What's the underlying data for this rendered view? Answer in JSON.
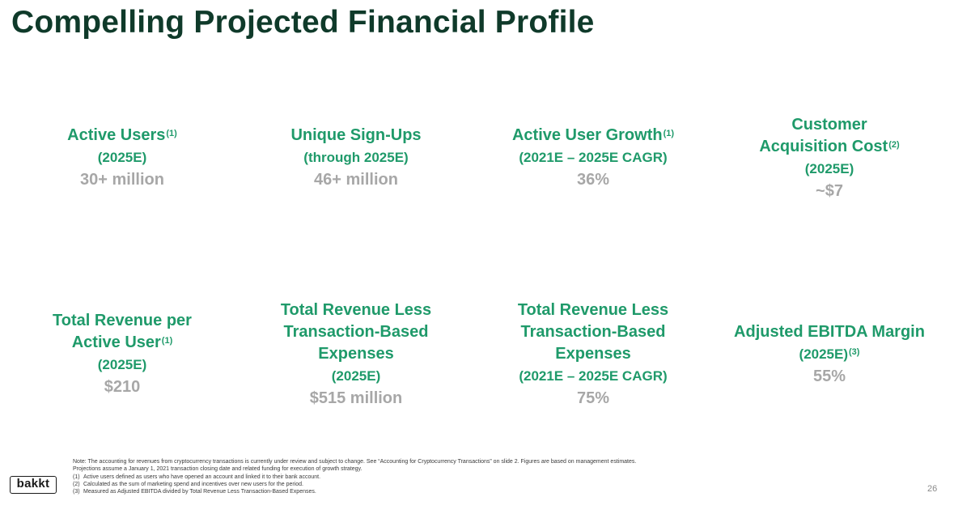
{
  "title": "Compelling Projected Financial Profile",
  "metrics_top": [
    {
      "label_lines": [
        "Active Users"
      ],
      "label_sup": "(1)",
      "sub_lines": [
        "(2025E)"
      ],
      "sub_sup": "",
      "value": "30+ million"
    },
    {
      "label_lines": [
        "Unique Sign-Ups"
      ],
      "label_sup": "",
      "sub_lines": [
        "(through 2025E)"
      ],
      "sub_sup": "",
      "value": "46+ million"
    },
    {
      "label_lines": [
        "Active User Growth"
      ],
      "label_sup": "(1)",
      "sub_lines": [
        "(2021E – 2025E CAGR)"
      ],
      "sub_sup": "",
      "value": "36%"
    },
    {
      "label_lines": [
        "Customer",
        "Acquisition Cost"
      ],
      "label_sup": "(2)",
      "sub_lines": [
        "(2025E)"
      ],
      "sub_sup": "",
      "value": "~$7"
    }
  ],
  "metrics_bottom": [
    {
      "label_lines": [
        "Total Revenue per",
        "Active User"
      ],
      "label_sup": "(1)",
      "sub_lines": [
        "(2025E)"
      ],
      "sub_sup": "",
      "value": "$210"
    },
    {
      "label_lines": [
        "Total Revenue Less",
        "Transaction-Based",
        "Expenses"
      ],
      "label_sup": "",
      "sub_lines": [
        "(2025E)"
      ],
      "sub_sup": "",
      "value": "$515 million"
    },
    {
      "label_lines": [
        "Total Revenue Less",
        "Transaction-Based",
        "Expenses"
      ],
      "label_sup": "",
      "sub_lines": [
        "(2021E – 2025E CAGR)"
      ],
      "sub_sup": "",
      "value": "75%"
    },
    {
      "label_lines": [
        "Adjusted EBITDA Margin"
      ],
      "label_sup": "",
      "sub_lines": [
        "(2025E)"
      ],
      "sub_sup": "(3)",
      "value": "55%"
    }
  ],
  "notes": {
    "line1": "Note: The accounting for revenues from cryptocurrency transactions is currently under review and subject to change.  See “Accounting for Cryptocurrency Transactions” on slide 2. Figures are based on management estimates.",
    "line2": "Projections assume a January 1, 2021 transaction closing date and related funding for execution of growth strategy.",
    "footnotes": [
      {
        "num": "(1)",
        "text": "Active users defined as users who have opened an account and linked it to their bank account."
      },
      {
        "num": "(2)",
        "text": "Calculated as the sum of marketing spend and incentives over new users for the period."
      },
      {
        "num": "(3)",
        "text": "Measured as Adjusted EBITDA divided by Total Revenue Less Transaction-Based Expenses."
      }
    ]
  },
  "logo_text": "bakkt",
  "page_number": "26"
}
